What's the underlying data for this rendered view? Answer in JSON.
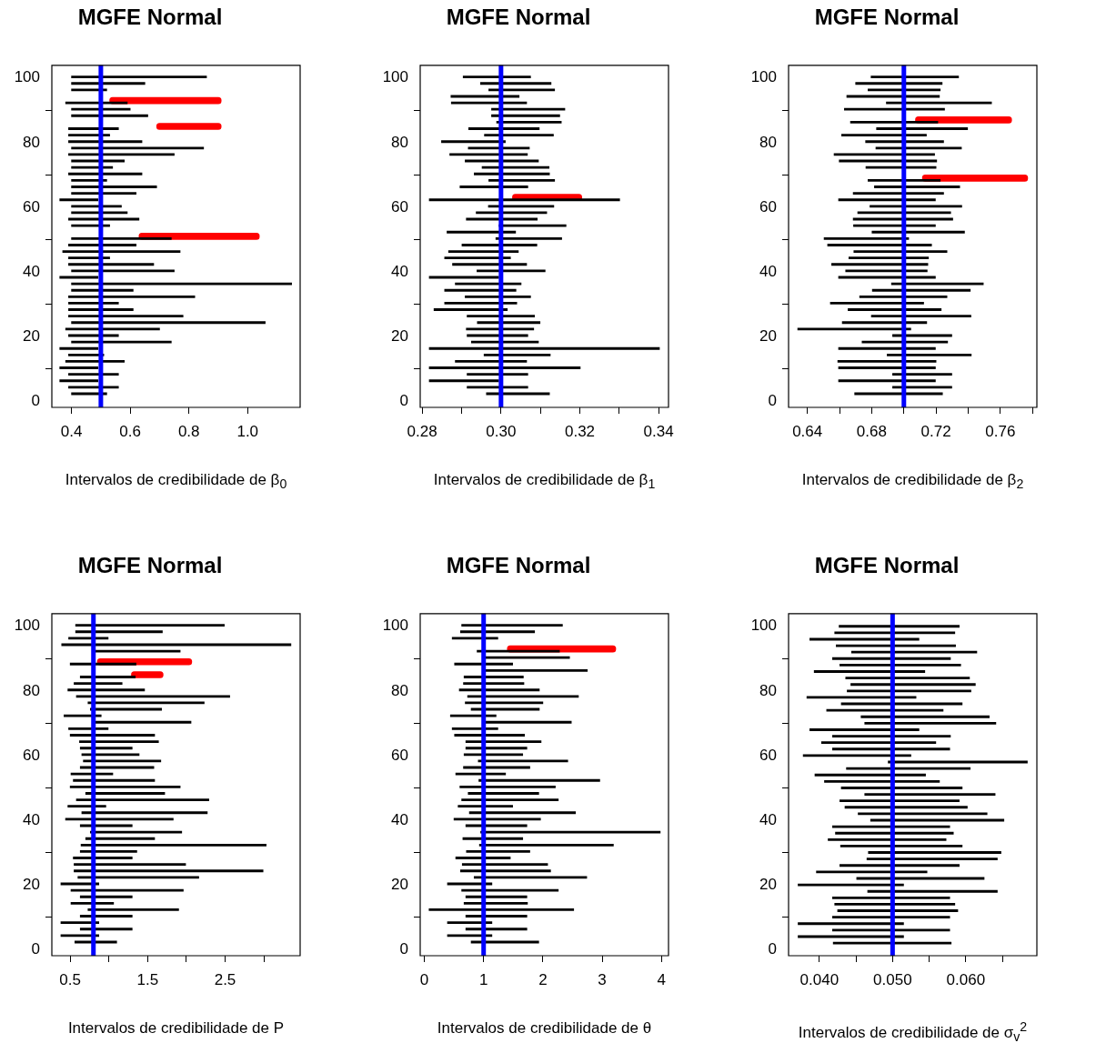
{
  "chart_data": [
    {
      "type": "bar",
      "orientation": "horizontal",
      "title": "MGFE Normal",
      "xlabel": "Intervalos de credibilidade de β$_{0}$",
      "xlim": [
        0.333,
        1.179
      ],
      "xticks": [
        0.4,
        0.6,
        0.8,
        {
          "value": 1,
          "label": "1.0"
        }
      ],
      "ylim": [
        -1.92,
        103.92
      ],
      "yticks": [
        0,
        20,
        40,
        60,
        80,
        100
      ],
      "ref_lines": [
        {
          "axis": "x",
          "value": 0.5,
          "color": "#0000ff"
        }
      ],
      "series": [
        {
          "color": "#000000",
          "x": [
            2,
            4,
            6,
            8,
            10,
            12,
            14,
            16,
            18,
            20,
            22,
            24,
            26,
            28,
            30,
            32,
            34,
            36,
            38,
            40,
            42,
            44,
            46,
            48,
            50,
            54,
            56,
            58,
            60,
            62,
            64,
            66,
            68,
            70,
            72,
            74,
            76,
            78,
            80,
            82,
            84,
            88,
            90,
            92,
            96,
            98,
            100
          ],
          "base": [
            0.4,
            0.39,
            0.36,
            0.39,
            0.36,
            0.38,
            0.39,
            0.36,
            0.4,
            0.39,
            0.38,
            0.4,
            0.39,
            0.39,
            0.39,
            0.39,
            0.4,
            0.4,
            0.36,
            0.4,
            0.39,
            0.39,
            0.37,
            0.39,
            0.4,
            0.4,
            0.39,
            0.4,
            0.4,
            0.36,
            0.4,
            0.4,
            0.4,
            0.39,
            0.4,
            0.4,
            0.39,
            0.4,
            0.39,
            0.39,
            0.39,
            0.4,
            0.4,
            0.38,
            0.4,
            0.4,
            0.4
          ],
          "values": [
            0.12,
            0.17,
            0.13,
            0.17,
            0.13,
            0.2,
            0.12,
            0.13,
            0.34,
            0.17,
            0.32,
            0.66,
            0.39,
            0.22,
            0.17,
            0.43,
            0.21,
            0.75,
            0.13,
            0.35,
            0.29,
            0.14,
            0.4,
            0.23,
            0.34,
            0.13,
            0.24,
            0.19,
            0.17,
            0.13,
            0.22,
            0.29,
            0.12,
            0.25,
            0.14,
            0.18,
            0.36,
            0.45,
            0.25,
            0.14,
            0.17,
            0.26,
            0.2,
            0.21,
            0.12,
            0.25,
            0.46
          ]
        },
        {
          "color": "#ff0000",
          "x": [
            52,
            86,
            94
          ],
          "base": [
            0.63,
            0.69,
            0.53
          ],
          "values": [
            0.41,
            0.22,
            0.38
          ]
        }
      ]
    },
    {
      "type": "bar",
      "orientation": "horizontal",
      "title": "MGFE Normal",
      "xlabel": "Intervalos de credibilidade de β$_{1}$",
      "xlim": [
        0.2795,
        0.3425
      ],
      "xticks": [
        0.28,
        {
          "value": 0.29,
          "label": null
        },
        {
          "value": 0.3,
          "label": "0.30"
        },
        {
          "value": 0.31,
          "label": null
        },
        0.32,
        {
          "value": 0.33,
          "label": null
        },
        0.34
      ],
      "ylim": [
        -1.92,
        103.92
      ],
      "yticks": [
        0,
        20,
        40,
        60,
        80,
        100
      ],
      "ref_lines": [
        {
          "axis": "x",
          "value": 0.3,
          "color": "#0000ff"
        }
      ],
      "series": [
        {
          "color": "#000000",
          "x": [
            2,
            4,
            6,
            8,
            10,
            12,
            14,
            16,
            18,
            20,
            22,
            24,
            26,
            28,
            30,
            32,
            34,
            36,
            38,
            40,
            42,
            44,
            46,
            48,
            50,
            52,
            54,
            56,
            58,
            60,
            62,
            66,
            68,
            70,
            72,
            74,
            76,
            78,
            80,
            82,
            84,
            86,
            88,
            90,
            92,
            94,
            96,
            98,
            100
          ],
          "base": [
            0.2963,
            0.2914,
            0.2818,
            0.2914,
            0.2818,
            0.2884,
            0.2957,
            0.2818,
            0.2925,
            0.2914,
            0.2912,
            0.294,
            0.2914,
            0.283,
            0.2857,
            0.2909,
            0.2857,
            0.2884,
            0.2818,
            0.2939,
            0.2877,
            0.2857,
            0.2867,
            0.2901,
            0.2987,
            0.2863,
            0.2995,
            0.2912,
            0.2937,
            0.2968,
            0.2818,
            0.2896,
            0.2969,
            0.2932,
            0.2952,
            0.2909,
            0.287,
            0.2917,
            0.2849,
            0.2958,
            0.2918,
            0.2989,
            0.2976,
            0.2976,
            0.2874,
            0.2873,
            0.2969,
            0.2948,
            0.2904
          ],
          "values": [
            0.016,
            0.0154,
            0.0176,
            0.0154,
            0.0383,
            0.0181,
            0.0168,
            0.0584,
            0.017,
            0.0154,
            0.0171,
            0.0159,
            0.0171,
            0.0186,
            0.0183,
            0.0166,
            0.0181,
            0.0167,
            0.0176,
            0.0173,
            0.0188,
            0.0167,
            0.0177,
            0.019,
            0.0167,
            0.0174,
            0.017,
            0.018,
            0.0179,
            0.0166,
            0.0483,
            0.0172,
            0.0167,
            0.0191,
            0.017,
            0.0186,
            0.0197,
            0.0155,
            0.0162,
            0.0175,
            0.0179,
            0.0164,
            0.0173,
            0.0186,
            0.0191,
            0.0173,
            0.0167,
            0.0179,
            0.0171
          ]
        },
        {
          "color": "#ff0000",
          "x": [
            64
          ],
          "base": [
            0.3029
          ],
          "values": [
            0.0176
          ]
        }
      ]
    },
    {
      "type": "bar",
      "orientation": "horizontal",
      "title": "MGFE Normal",
      "xlabel": "Intervalos de credibilidade de β$_{2}$",
      "xlim": [
        0.6283,
        0.7827
      ],
      "xticks": [
        0.64,
        {
          "value": 0.66,
          "label": null
        },
        0.68,
        {
          "value": 0.7,
          "label": null
        },
        0.72,
        {
          "value": 0.74,
          "label": null
        },
        0.76,
        {
          "value": 0.78,
          "label": null
        }
      ],
      "ylim": [
        -1.92,
        103.92
      ],
      "yticks": [
        0,
        20,
        40,
        60,
        80,
        100
      ],
      "ref_lines": [
        {
          "axis": "x",
          "value": 0.7,
          "color": "#0000ff"
        }
      ],
      "series": [
        {
          "color": "#000000",
          "x": [
            2,
            4,
            6,
            8,
            10,
            12,
            14,
            16,
            18,
            20,
            22,
            24,
            26,
            28,
            30,
            32,
            34,
            36,
            38,
            40,
            42,
            44,
            46,
            48,
            50,
            52,
            54,
            56,
            58,
            60,
            62,
            64,
            66,
            68,
            72,
            74,
            76,
            78,
            80,
            82,
            84,
            86,
            90,
            92,
            94,
            96,
            98,
            100
          ],
          "base": [
            0.6694,
            0.693,
            0.6594,
            0.693,
            0.6594,
            0.6589,
            0.6896,
            0.6594,
            0.674,
            0.693,
            0.634,
            0.6617,
            0.6798,
            0.6653,
            0.6543,
            0.6725,
            0.6804,
            0.6923,
            0.6594,
            0.6638,
            0.6551,
            0.6658,
            0.6689,
            0.6526,
            0.6504,
            0.6802,
            0.6687,
            0.6685,
            0.6713,
            0.6789,
            0.6594,
            0.6685,
            0.6817,
            0.6777,
            0.6764,
            0.6598,
            0.6566,
            0.6826,
            0.6762,
            0.6613,
            0.683,
            0.6668,
            0.663,
            0.6891,
            0.6645,
            0.6777,
            0.67,
            0.6796
          ],
          "values": [
            0.0546,
            0.0368,
            0.0602,
            0.0368,
            0.0602,
            0.0611,
            0.0523,
            0.0602,
            0.0532,
            0.0368,
            0.0703,
            0.0525,
            0.0619,
            0.0579,
            0.058,
            0.0543,
            0.0609,
            0.0571,
            0.0602,
            0.0507,
            0.0598,
            0.0495,
            0.0579,
            0.0646,
            0.0526,
            0.0575,
            0.0509,
            0.0619,
            0.0578,
            0.0571,
            0.0602,
            0.0562,
            0.053,
            0.0449,
            0.0436,
            0.0606,
            0.0625,
            0.0532,
            0.0485,
            0.0527,
            0.0566,
            0.0543,
            0.0623,
            0.0654,
            0.0576,
            0.0449,
            0.0538,
            0.0544
          ]
        },
        {
          "color": "#ff0000",
          "x": [
            70,
            88
          ],
          "base": [
            0.7115,
            0.7072
          ],
          "values": [
            0.0655,
            0.0598
          ]
        }
      ]
    },
    {
      "type": "bar",
      "orientation": "horizontal",
      "title": "MGFE Normal",
      "xlabel": "Intervalos de credibilidade de P",
      "xlim": [
        0.263,
        3.469
      ],
      "xticks": [
        0.5,
        {
          "value": 1,
          "label": null
        },
        1.5,
        {
          "value": 2,
          "label": null
        },
        2.5,
        {
          "value": 3,
          "label": null
        }
      ],
      "ylim": [
        -1.92,
        103.92
      ],
      "yticks": [
        0,
        20,
        40,
        60,
        80,
        100
      ],
      "ref_lines": [
        {
          "axis": "x",
          "value": 0.8,
          "color": "#0000ff"
        }
      ],
      "series": [
        {
          "color": "#000000",
          "x": [
            2,
            4,
            6,
            8,
            10,
            12,
            14,
            16,
            18,
            20,
            22,
            24,
            26,
            28,
            30,
            32,
            34,
            36,
            38,
            40,
            42,
            44,
            46,
            48,
            50,
            52,
            54,
            56,
            58,
            60,
            62,
            64,
            66,
            68,
            70,
            72,
            74,
            76,
            78,
            80,
            82,
            84,
            88,
            92,
            94,
            96,
            98,
            100
          ],
          "base": [
            0.56,
            0.38,
            0.63,
            0.38,
            0.63,
            0.73,
            0.51,
            0.63,
            0.51,
            0.38,
            0.6,
            0.55,
            0.55,
            0.54,
            0.63,
            0.64,
            0.7,
            0.76,
            0.63,
            0.44,
            0.65,
            0.47,
            0.58,
            0.7,
            0.5,
            0.54,
            0.51,
            0.63,
            0.67,
            0.65,
            0.63,
            0.62,
            0.5,
            0.48,
            0.79,
            0.42,
            0.76,
            0.73,
            0.58,
            0.47,
            0.55,
            0.63,
            0.5,
            0.79,
            0.39,
            0.48,
            0.57,
            0.57
          ],
          "values": [
            0.54,
            0.49,
            0.67,
            0.49,
            0.67,
            1.17,
            0.55,
            0.67,
            1.45,
            0.49,
            1.56,
            2.44,
            1.44,
            0.76,
            0.73,
            2.39,
            0.89,
            1.18,
            0.67,
            1.39,
            1.62,
            0.49,
            1.71,
            1.02,
            1.42,
            1.05,
            0.54,
            0.95,
            1.0,
            0.74,
            0.67,
            1.02,
            1.09,
            0.51,
            1.27,
            0.48,
            0.92,
            1.5,
            1.98,
            0.99,
            0.62,
            0.71,
            0.85,
            1.13,
            2.96,
            0.51,
            1.12,
            1.92
          ]
        },
        {
          "color": "#ff0000",
          "x": [
            86,
            90
          ],
          "base": [
            1.29,
            0.85
          ],
          "values": [
            0.41,
            1.22
          ]
        }
      ]
    },
    {
      "type": "bar",
      "orientation": "horizontal",
      "title": "MGFE Normal",
      "xlabel": "Intervalos de credibilidade de θ",
      "xlim": [
        -0.07,
        4.12
      ],
      "xticks": [
        0,
        1,
        2,
        3,
        4
      ],
      "ylim": [
        -1.92,
        103.92
      ],
      "yticks": [
        0,
        20,
        40,
        60,
        80,
        100
      ],
      "ref_lines": [
        {
          "axis": "x",
          "value": 1,
          "color": "#0000ff"
        }
      ],
      "series": [
        {
          "color": "#000000",
          "x": [
            2,
            4,
            6,
            8,
            10,
            12,
            14,
            16,
            18,
            20,
            22,
            24,
            26,
            28,
            30,
            32,
            34,
            36,
            38,
            40,
            42,
            44,
            46,
            48,
            50,
            52,
            54,
            56,
            58,
            60,
            62,
            64,
            66,
            68,
            70,
            72,
            74,
            76,
            78,
            80,
            82,
            84,
            86,
            88,
            90,
            92,
            96,
            98,
            100
          ],
          "base": [
            0.79,
            0.39,
            0.7,
            0.39,
            0.7,
            0.08,
            0.67,
            0.7,
            0.63,
            0.39,
            0.84,
            0.61,
            0.64,
            0.53,
            0.71,
            0.93,
            0.65,
            0.95,
            0.7,
            0.5,
            0.76,
            0.57,
            0.63,
            0.74,
            0.6,
            0.92,
            0.53,
            0.66,
            0.91,
            0.67,
            0.7,
            0.7,
            0.51,
            0.47,
            0.98,
            0.44,
            0.79,
            0.69,
            0.73,
            0.59,
            0.66,
            0.67,
            0.98,
            0.51,
            0.98,
            0.89,
            0.47,
            0.61,
            0.63
          ],
          "values": [
            1.14,
            0.75,
            1.03,
            0.75,
            1.03,
            2.44,
            1.07,
            1.03,
            1.63,
            0.75,
            1.9,
            1.52,
            1.44,
            0.92,
            1.07,
            2.26,
            1.01,
            3.03,
            1.03,
            1.46,
            1.79,
            0.92,
            1.63,
            1.19,
            1.61,
            2.04,
            0.84,
            1.12,
            1.51,
            0.99,
            1.03,
            1.27,
            1.18,
            0.77,
            1.5,
            0.77,
            1.15,
            1.31,
            1.87,
            1.35,
            1.02,
            1.0,
            1.77,
            0.98,
            1.47,
            1.39,
            0.77,
            1.25,
            1.7
          ]
        },
        {
          "color": "#ff0000",
          "x": [
            94
          ],
          "base": [
            1.4
          ],
          "values": [
            1.83
          ]
        }
      ]
    },
    {
      "type": "bar",
      "orientation": "horizontal",
      "title": "MGFE Normal",
      "xlabel": "Intervalos de credibilidade de σ$_{v}$$^{2}$",
      "xlim": [
        0.0358,
        0.0697
      ],
      "xticks": [
        {
          "value": 0.04,
          "label": "0.040"
        },
        {
          "value": 0.045,
          "label": null
        },
        {
          "value": 0.05,
          "label": "0.050"
        },
        {
          "value": 0.055,
          "label": null
        },
        {
          "value": 0.06,
          "label": "0.060"
        },
        {
          "value": 0.065,
          "label": null
        }
      ],
      "ylim": [
        -1.92,
        103.92
      ],
      "yticks": [
        0,
        20,
        40,
        60,
        80,
        100
      ],
      "ref_lines": [
        {
          "axis": "x",
          "value": 0.05,
          "color": "#0000ff"
        }
      ],
      "series": [
        {
          "color": "#000000",
          "x": [
            2,
            4,
            6,
            8,
            10,
            12,
            14,
            16,
            18,
            20,
            22,
            24,
            26,
            28,
            30,
            32,
            34,
            36,
            38,
            40,
            42,
            44,
            46,
            48,
            50,
            52,
            54,
            56,
            58,
            60,
            62,
            64,
            66,
            68,
            70,
            72,
            74,
            76,
            78,
            80,
            82,
            84,
            86,
            88,
            90,
            92,
            94,
            96,
            98,
            100
          ],
          "base": [
            0.0419,
            0.0371,
            0.0418,
            0.0371,
            0.0418,
            0.0425,
            0.0421,
            0.0418,
            0.0466,
            0.0371,
            0.0451,
            0.0396,
            0.0428,
            0.0465,
            0.0467,
            0.0429,
            0.0412,
            0.0422,
            0.0418,
            0.047,
            0.0453,
            0.0435,
            0.0428,
            0.0462,
            0.043,
            0.0407,
            0.0394,
            0.0437,
            0.0494,
            0.0378,
            0.0418,
            0.0403,
            0.0418,
            0.0387,
            0.0462,
            0.0457,
            0.041,
            0.043,
            0.0383,
            0.0438,
            0.0443,
            0.0436,
            0.0393,
            0.0428,
            0.0418,
            0.0444,
            0.0423,
            0.0387,
            0.0421,
            0.0427
          ],
          "values": [
            0.0161,
            0.0144,
            0.016,
            0.0144,
            0.016,
            0.0164,
            0.0164,
            0.016,
            0.0177,
            0.0144,
            0.0174,
            0.0151,
            0.0163,
            0.0178,
            0.0181,
            0.0166,
            0.0161,
            0.0161,
            0.016,
            0.0182,
            0.0176,
            0.0167,
            0.0163,
            0.0178,
            0.0165,
            0.0157,
            0.0151,
            0.0169,
            0.019,
            0.0147,
            0.016,
            0.0156,
            0.0161,
            0.0149,
            0.0179,
            0.0175,
            0.0159,
            0.0165,
            0.0149,
            0.0169,
            0.017,
            0.0169,
            0.0151,
            0.0165,
            0.0161,
            0.0171,
            0.0163,
            0.0149,
            0.0164,
            0.0164
          ]
        }
      ]
    }
  ]
}
